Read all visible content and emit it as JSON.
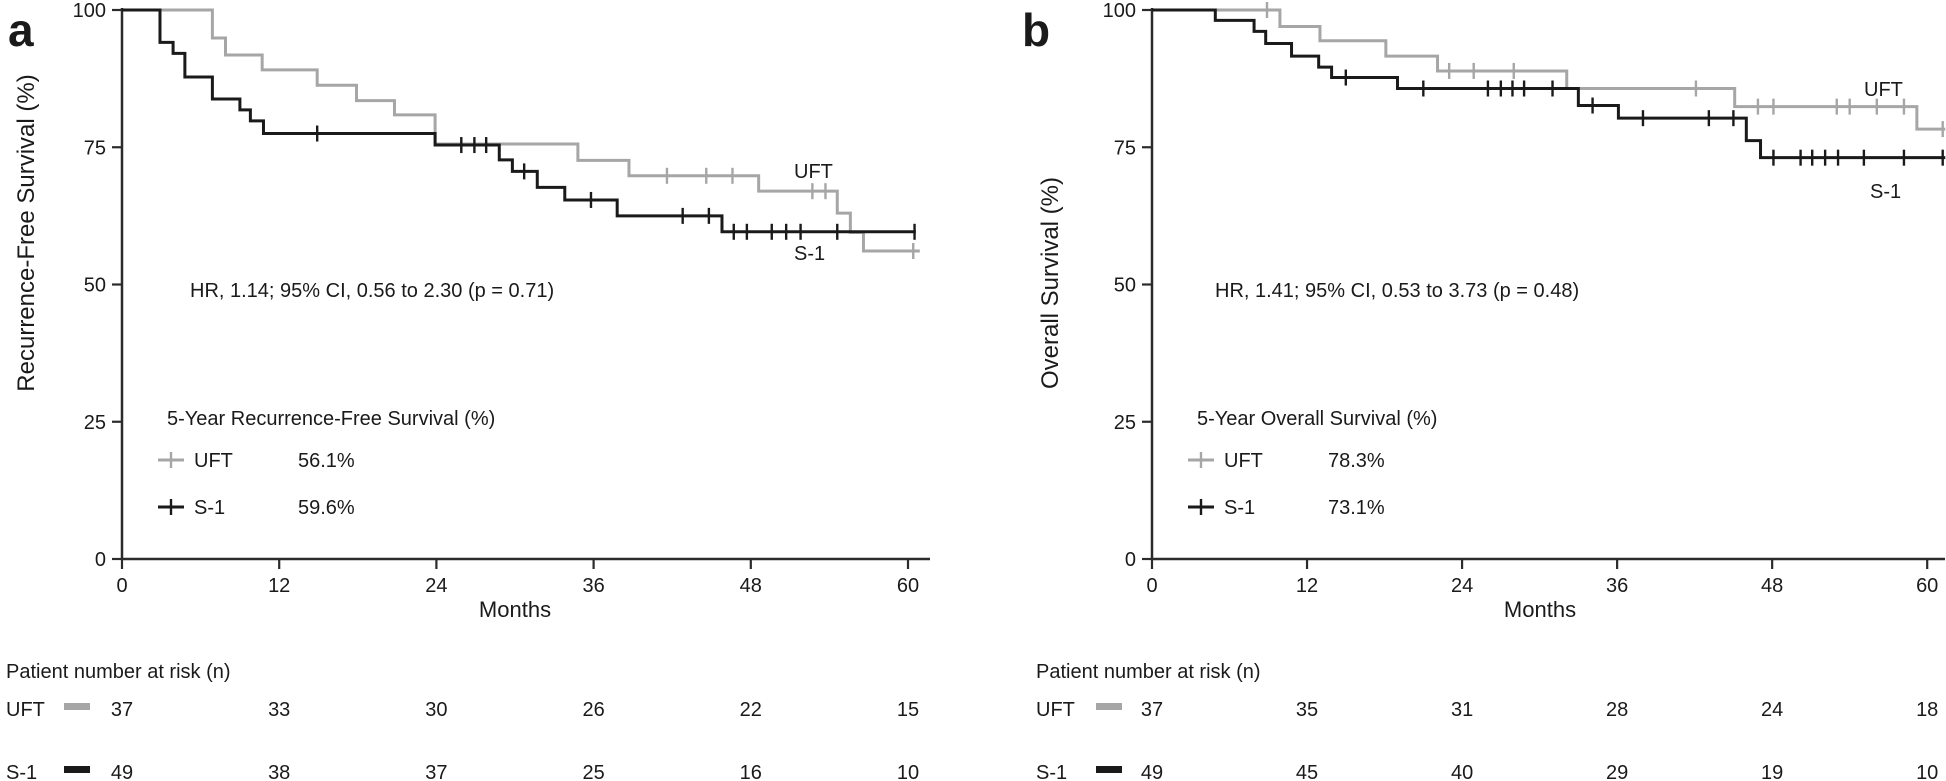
{
  "figure": {
    "background": "#ffffff",
    "colors": {
      "uft": "#a6a6a6",
      "s1": "#1a1a1a",
      "axis": "#2b2b2b",
      "text": "#1a1a1a"
    }
  },
  "chart_data": [
    {
      "type": "line",
      "subtype": "kaplan-meier-step",
      "panel_letter": "a",
      "xlabel": "Months",
      "ylabel": "Recurrence-Free Survival (%)",
      "xlim": [
        0,
        61.7
      ],
      "ylim": [
        0,
        100
      ],
      "xticks": [
        0,
        12,
        24,
        36,
        48,
        60
      ],
      "yticks": [
        0,
        25,
        50,
        75,
        100
      ],
      "grid": false,
      "annotation": "HR, 1.14; 95% CI, 0.56 to 2.30 (p = 0.71)",
      "legend": {
        "title": "5-Year Recurrence-Free Survival (%)",
        "rows": [
          {
            "name": "UFT",
            "value": "56.1%"
          },
          {
            "name": "S-1",
            "value": "59.6%"
          }
        ]
      },
      "series": [
        {
          "name": "UFT",
          "color_key": "uft",
          "steps": [
            [
              0,
              100
            ],
            [
              6.9,
              94.9
            ],
            [
              7.9,
              91.8
            ],
            [
              10.7,
              89.1
            ],
            [
              14.9,
              86.3
            ],
            [
              17.9,
              83.5
            ],
            [
              20.8,
              80.9
            ],
            [
              23.9,
              75.6
            ],
            [
              34.8,
              72.6
            ],
            [
              38.7,
              69.8
            ],
            [
              48.6,
              67.0
            ],
            [
              54.6,
              63.0
            ],
            [
              55.6,
              59.5
            ],
            [
              56.6,
              56.1
            ]
          ],
          "end_month": 60.9,
          "censors": [
            [
              41.6,
              69.8
            ],
            [
              44.6,
              69.8
            ],
            [
              46.6,
              69.8
            ],
            [
              52.7,
              67.0
            ],
            [
              53.7,
              67.0
            ],
            [
              60.4,
              56.1
            ]
          ],
          "five_year_value": "56.1%"
        },
        {
          "name": "S-1",
          "color_key": "s1",
          "steps": [
            [
              0,
              100
            ],
            [
              2.9,
              94.1
            ],
            [
              3.9,
              92.1
            ],
            [
              4.8,
              87.8
            ],
            [
              6.9,
              83.8
            ],
            [
              9.0,
              81.8
            ],
            [
              9.8,
              79.8
            ],
            [
              10.8,
              77.5
            ],
            [
              23.9,
              75.4
            ],
            [
              28.8,
              72.7
            ],
            [
              29.8,
              70.6
            ],
            [
              31.7,
              67.7
            ],
            [
              33.8,
              65.4
            ],
            [
              37.8,
              62.5
            ],
            [
              45.8,
              59.6
            ]
          ],
          "end_month": 60.6,
          "censors": [
            [
              14.9,
              77.5
            ],
            [
              25.9,
              75.4
            ],
            [
              26.9,
              75.4
            ],
            [
              27.8,
              75.4
            ],
            [
              30.7,
              70.6
            ],
            [
              35.8,
              65.4
            ],
            [
              42.8,
              62.5
            ],
            [
              44.8,
              62.5
            ],
            [
              46.7,
              59.6
            ],
            [
              47.7,
              59.6
            ],
            [
              49.6,
              59.6
            ],
            [
              50.7,
              59.6
            ],
            [
              51.8,
              59.6
            ],
            [
              54.6,
              59.6
            ],
            [
              60.5,
              59.6
            ]
          ],
          "five_year_value": "59.6%"
        }
      ],
      "risk_table": {
        "title": "Patient number at risk (n)",
        "months": [
          0,
          12,
          24,
          36,
          48,
          60
        ],
        "rows": [
          {
            "name": "UFT",
            "color_key": "uft",
            "values": [
              "37",
              "33",
              "30",
              "26",
              "22",
              "15"
            ]
          },
          {
            "name": "S-1",
            "color_key": "s1",
            "values": [
              "49",
              "38",
              "37",
              "25",
              "16",
              "10"
            ]
          }
        ]
      }
    },
    {
      "type": "line",
      "subtype": "kaplan-meier-step",
      "panel_letter": "b",
      "xlabel": "Months",
      "ylabel": "Overall Survival (%)",
      "xlim": [
        0,
        61.5
      ],
      "ylim": [
        0,
        100
      ],
      "xticks": [
        0,
        12,
        24,
        36,
        48,
        60
      ],
      "yticks": [
        0,
        25,
        50,
        75,
        100
      ],
      "grid": false,
      "annotation": "HR, 1.41; 95% CI, 0.53 to 3.73 (p = 0.48)",
      "legend": {
        "title": "5-Year Overall Survival (%)",
        "rows": [
          {
            "name": "UFT",
            "value": "78.3%"
          },
          {
            "name": "S-1",
            "value": "73.1%"
          }
        ]
      },
      "series": [
        {
          "name": "UFT",
          "color_key": "uft",
          "steps": [
            [
              0,
              100
            ],
            [
              9.9,
              97.0
            ],
            [
              13.0,
              94.4
            ],
            [
              18.1,
              91.6
            ],
            [
              22.1,
              88.9
            ],
            [
              32.1,
              85.7
            ],
            [
              45.1,
              82.4
            ],
            [
              59.2,
              78.3
            ]
          ],
          "end_month": 61.4,
          "censors": [
            [
              8.9,
              100
            ],
            [
              23.0,
              88.9
            ],
            [
              24.9,
              88.9
            ],
            [
              28.0,
              88.9
            ],
            [
              42.1,
              85.7
            ],
            [
              46.9,
              82.4
            ],
            [
              48.1,
              82.4
            ],
            [
              53.0,
              82.4
            ],
            [
              54.0,
              82.4
            ],
            [
              56.1,
              82.4
            ],
            [
              58.2,
              82.4
            ],
            [
              61.2,
              78.3
            ]
          ],
          "five_year_value": "78.3%"
        },
        {
          "name": "S-1",
          "color_key": "s1",
          "steps": [
            [
              0,
              100
            ],
            [
              4.9,
              98.1
            ],
            [
              7.9,
              96.1
            ],
            [
              8.8,
              93.9
            ],
            [
              10.8,
              91.6
            ],
            [
              12.9,
              89.6
            ],
            [
              13.9,
              87.7
            ],
            [
              19.0,
              85.7
            ],
            [
              33.0,
              82.6
            ],
            [
              36.1,
              80.3
            ],
            [
              46.0,
              76.2
            ],
            [
              47.1,
              73.1
            ]
          ],
          "end_month": 61.4,
          "censors": [
            [
              15.0,
              87.7
            ],
            [
              21.0,
              85.7
            ],
            [
              26.0,
              85.7
            ],
            [
              27.0,
              85.7
            ],
            [
              27.9,
              85.7
            ],
            [
              28.8,
              85.7
            ],
            [
              31.0,
              85.7
            ],
            [
              34.1,
              82.6
            ],
            [
              38.0,
              80.3
            ],
            [
              43.1,
              80.3
            ],
            [
              45.0,
              80.3
            ],
            [
              48.1,
              73.1
            ],
            [
              50.2,
              73.1
            ],
            [
              51.1,
              73.1
            ],
            [
              52.1,
              73.1
            ],
            [
              53.1,
              73.1
            ],
            [
              55.1,
              73.1
            ],
            [
              58.2,
              73.1
            ],
            [
              61.2,
              73.1
            ]
          ],
          "five_year_value": "73.1%"
        }
      ],
      "risk_table": {
        "title": "Patient number at risk (n)",
        "months": [
          0,
          12,
          24,
          36,
          48,
          60
        ],
        "rows": [
          {
            "name": "UFT",
            "color_key": "uft",
            "values": [
              "37",
              "35",
              "31",
              "28",
              "24",
              "18"
            ]
          },
          {
            "name": "S-1",
            "color_key": "s1",
            "values": [
              "49",
              "45",
              "40",
              "29",
              "19",
              "10"
            ]
          }
        ]
      }
    }
  ]
}
